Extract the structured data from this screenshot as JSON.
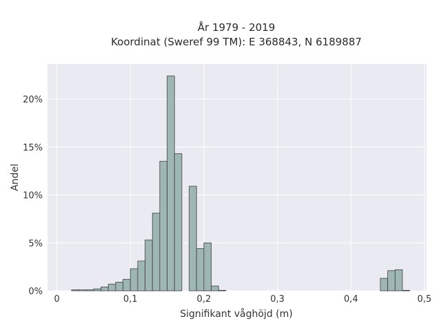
{
  "chart_data": {
    "type": "bar",
    "title": "År 1979 - 2019",
    "subtitle": "Koordinat (Sweref 99 TM): E 368843, N 6189887",
    "xlabel": "Signifikant våghöjd (m)",
    "ylabel": "Andel",
    "xlim": [
      -0.012,
      0.5
    ],
    "ylim": [
      0,
      0.225
    ],
    "x_ticks": [
      0,
      0.1,
      0.2,
      0.3,
      0.4,
      0.5
    ],
    "x_tick_labels": [
      "0",
      "0,1",
      "0,2",
      "0,3",
      "0,4",
      "0,5"
    ],
    "y_ticks": [
      0,
      0.05,
      0.1,
      0.15,
      0.2
    ],
    "y_tick_labels": [
      "0%",
      "5%",
      "10%",
      "15%",
      "20%"
    ],
    "grid": true,
    "bin_width": 0.01,
    "bins": [
      {
        "x0": 0.02,
        "value": 0.001
      },
      {
        "x0": 0.03,
        "value": 0.001
      },
      {
        "x0": 0.04,
        "value": 0.001
      },
      {
        "x0": 0.05,
        "value": 0.002
      },
      {
        "x0": 0.06,
        "value": 0.004
      },
      {
        "x0": 0.07,
        "value": 0.007
      },
      {
        "x0": 0.08,
        "value": 0.009
      },
      {
        "x0": 0.09,
        "value": 0.012
      },
      {
        "x0": 0.1,
        "value": 0.023
      },
      {
        "x0": 0.11,
        "value": 0.031
      },
      {
        "x0": 0.12,
        "value": 0.053
      },
      {
        "x0": 0.13,
        "value": 0.081
      },
      {
        "x0": 0.14,
        "value": 0.135
      },
      {
        "x0": 0.15,
        "value": 0.224
      },
      {
        "x0": 0.16,
        "value": 0.143
      },
      {
        "x0": 0.17,
        "value": 0.0
      },
      {
        "x0": 0.18,
        "value": 0.109
      },
      {
        "x0": 0.19,
        "value": 0.044
      },
      {
        "x0": 0.2,
        "value": 0.05
      },
      {
        "x0": 0.21,
        "value": 0.005
      },
      {
        "x0": 0.22,
        "value": 0.0005
      },
      {
        "x0": 0.44,
        "value": 0.013
      },
      {
        "x0": 0.45,
        "value": 0.021
      },
      {
        "x0": 0.46,
        "value": 0.022
      },
      {
        "x0": 0.47,
        "value": 0.0005
      }
    ],
    "colors": {
      "bar_fill": "#9fb7b4",
      "bar_stroke": "#3d3d3d",
      "plot_background": "#eaeaf2",
      "grid": "#ffffff"
    }
  }
}
